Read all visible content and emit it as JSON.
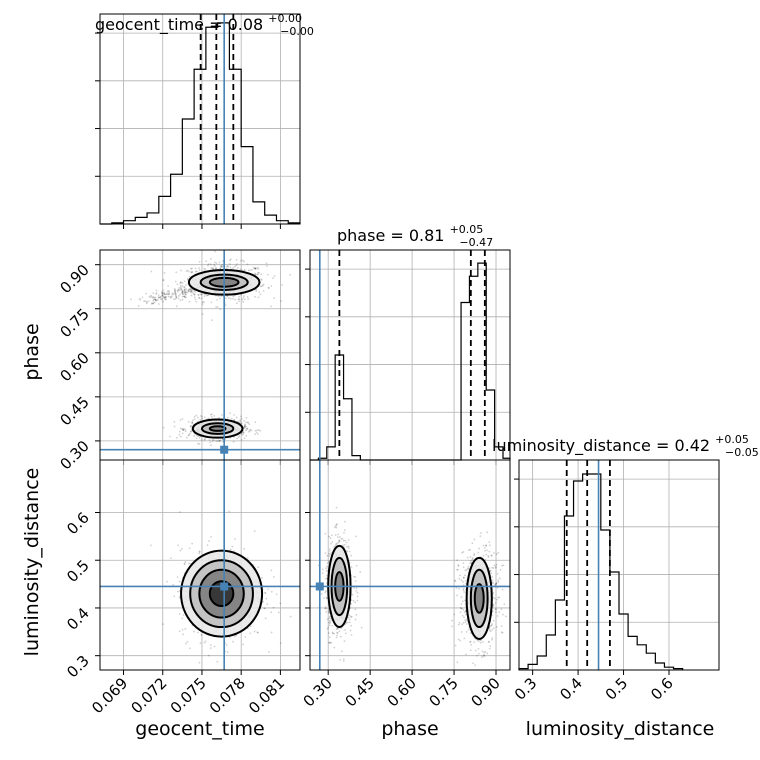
{
  "chart_data": {
    "type": "corner",
    "colors": {
      "truth": "#4682b4",
      "hist": "#000000",
      "grid": "#b0b0b0"
    },
    "parameters": [
      {
        "key": "geocent_time",
        "axis_label": "geocent_time",
        "title": "geocent_time = 0.08",
        "title_main": "geocent_time = 0.08",
        "title_sup": "+0.00",
        "title_sub": "−0.00",
        "range": [
          0.0672,
          0.0825
        ],
        "ticks": [
          0.069,
          0.072,
          0.075,
          0.078,
          0.081
        ],
        "tick_labels": [
          "0.069",
          "0.072",
          "0.075",
          "0.078",
          "0.081"
        ],
        "truth": 0.0767,
        "quantiles": [
          0.0749,
          0.0761,
          0.0774
        ],
        "hist_x": [
          0.0672,
          0.0681,
          0.069,
          0.0699,
          0.0708,
          0.0717,
          0.0726,
          0.0735,
          0.0744,
          0.0753,
          0.0762,
          0.0771,
          0.078,
          0.0789,
          0.0798,
          0.0807,
          0.0816,
          0.0825
        ],
        "hist_y": [
          0,
          1,
          3,
          6,
          10,
          25,
          45,
          95,
          140,
          178,
          182,
          140,
          70,
          20,
          8,
          3,
          1
        ],
        "hist_ylim": [
          0,
          190
        ]
      },
      {
        "key": "phase",
        "axis_label": "phase",
        "title": "phase = 0.81",
        "title_main": "phase = 0.81",
        "title_sup": "+0.05",
        "title_sub": "−0.47",
        "range": [
          0.235,
          0.95
        ],
        "ticks": [
          0.3,
          0.45,
          0.6,
          0.75,
          0.9
        ],
        "tick_labels": [
          "0.30",
          "0.45",
          "0.60",
          "0.75",
          "0.90"
        ],
        "truth": 0.27,
        "quantiles": [
          0.34,
          0.81,
          0.86
        ],
        "hist_x": [
          0.235,
          0.265,
          0.295,
          0.325,
          0.355,
          0.385,
          0.415,
          0.445,
          0.475,
          0.505,
          0.535,
          0.565,
          0.595,
          0.625,
          0.655,
          0.685,
          0.715,
          0.745,
          0.775,
          0.805,
          0.835,
          0.865,
          0.895,
          0.925,
          0.95
        ],
        "hist_y": [
          0,
          2,
          15,
          120,
          70,
          5,
          0,
          0,
          0,
          0,
          0,
          0,
          0,
          0,
          0,
          0,
          0,
          0,
          180,
          210,
          225,
          80,
          15,
          2
        ],
        "hist_ylim": [
          0,
          240
        ]
      },
      {
        "key": "luminosity_distance",
        "axis_label": "luminosity_distance",
        "title": "luminosity_distance = 0.42",
        "title_main": "luminosity_distance = 0.42",
        "title_sup": "+0.05",
        "title_sub": "−0.05",
        "range": [
          0.27,
          0.71
        ],
        "ticks": [
          0.3,
          0.4,
          0.5,
          0.6
        ],
        "tick_labels": [
          "0.3",
          "0.4",
          "0.5",
          "0.6"
        ],
        "truth": 0.445,
        "quantiles": [
          0.375,
          0.42,
          0.47
        ],
        "hist_x": [
          0.27,
          0.29,
          0.31,
          0.33,
          0.35,
          0.37,
          0.39,
          0.41,
          0.43,
          0.45,
          0.47,
          0.49,
          0.51,
          0.53,
          0.55,
          0.57,
          0.59,
          0.61,
          0.63
        ],
        "hist_y": [
          1,
          4,
          10,
          25,
          50,
          110,
          135,
          140,
          140,
          100,
          70,
          40,
          24,
          18,
          12,
          5,
          2,
          1
        ],
        "hist_ylim": [
          0,
          150
        ]
      }
    ],
    "scatter_panels": [
      {
        "x": "geocent_time",
        "y": "phase",
        "blobs": [
          {
            "cx": 0.0767,
            "cy": 0.84,
            "sx": 0.0016,
            "sy": 0.032,
            "contours": [
              [
                0.0011,
                0.015
              ],
              [
                0.0018,
                0.026
              ],
              [
                0.0027,
                0.042
              ]
            ],
            "tail": [
              0.0705,
              0.775
            ]
          },
          {
            "cx": 0.0762,
            "cy": 0.342,
            "sx": 0.0011,
            "sy": 0.018,
            "contours": [
              [
                0.0006,
                0.008
              ],
              [
                0.0012,
                0.018
              ],
              [
                0.0019,
                0.031
              ]
            ]
          }
        ]
      },
      {
        "x": "geocent_time",
        "y": "luminosity_distance",
        "blobs": [
          {
            "cx": 0.0765,
            "cy": 0.43,
            "sx": 0.0016,
            "sy": 0.048,
            "contours": [
              [
                0.0009,
                0.026
              ],
              [
                0.0017,
                0.05
              ],
              [
                0.0024,
                0.07
              ],
              [
                0.0031,
                0.09
              ]
            ]
          }
        ]
      },
      {
        "x": "phase",
        "y": "luminosity_distance",
        "blobs": [
          {
            "cx": 0.34,
            "cy": 0.445,
            "sx": 0.025,
            "sy": 0.05,
            "contours": [
              [
                0.015,
                0.03
              ],
              [
                0.028,
                0.06
              ],
              [
                0.04,
                0.085
              ]
            ]
          },
          {
            "cx": 0.84,
            "cy": 0.42,
            "sx": 0.035,
            "sy": 0.05,
            "contours": [
              [
                0.016,
                0.03
              ],
              [
                0.03,
                0.06
              ],
              [
                0.045,
                0.085
              ]
            ]
          }
        ]
      }
    ]
  }
}
